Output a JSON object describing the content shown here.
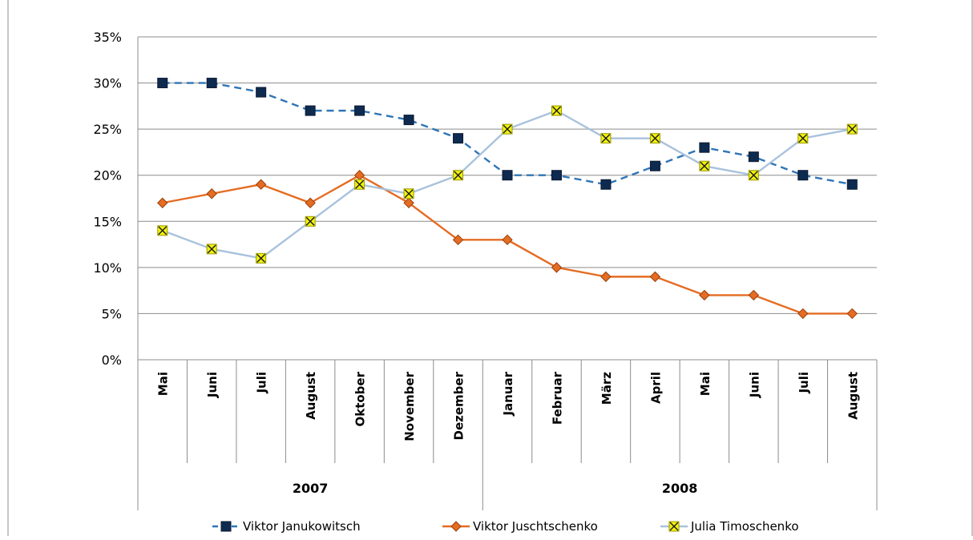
{
  "chart_data": {
    "type": "line",
    "title": "",
    "xlabel": "",
    "ylabel": "",
    "ylim": [
      0,
      35
    ],
    "y_ticks": [
      "0%",
      "5%",
      "10%",
      "15%",
      "20%",
      "25%",
      "30%",
      "35%"
    ],
    "y_tick_values": [
      0,
      5,
      10,
      15,
      20,
      25,
      30,
      35
    ],
    "categories": [
      "Mai",
      "Juni",
      "Juli",
      "August",
      "Oktober",
      "November",
      "Dezember",
      "Januar",
      "Februar",
      "März",
      "April",
      "Mai",
      "Juni",
      "Juli",
      "August"
    ],
    "year_groups": [
      {
        "label": "2007",
        "start": 0,
        "end": 6
      },
      {
        "label": "2008",
        "start": 7,
        "end": 14
      }
    ],
    "grid": "horizontal",
    "legend_position": "bottom",
    "series": [
      {
        "name": "Viktor Janukowitsch",
        "color": "#2e75b6",
        "marker_color": "#0f2a4f",
        "marker": "square",
        "dash": "dashed",
        "values": [
          30,
          30,
          29,
          27,
          27,
          26,
          24,
          20,
          20,
          19,
          21,
          23,
          22,
          20,
          19
        ]
      },
      {
        "name": "Viktor Juschtschenko",
        "color": "#e46c23",
        "marker_color": "#e46c23",
        "marker": "diamond",
        "dash": "solid",
        "values": [
          17,
          18,
          19,
          17,
          20,
          17,
          13,
          13,
          10,
          9,
          9,
          7,
          7,
          5,
          5
        ]
      },
      {
        "name": "Julia Timoschenko",
        "color": "#a9c2dc",
        "marker_color": "#f2f20e",
        "marker": "x",
        "dash": "solid",
        "values": [
          14,
          12,
          11,
          15,
          19,
          18,
          20,
          25,
          27,
          24,
          24,
          21,
          20,
          24,
          25
        ]
      }
    ]
  }
}
